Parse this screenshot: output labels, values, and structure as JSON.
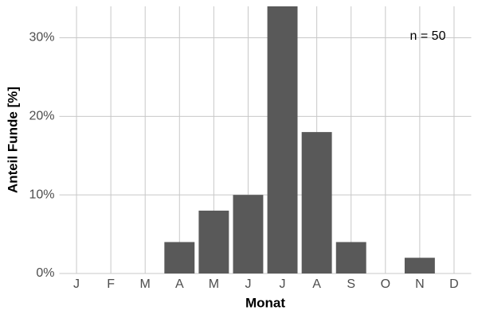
{
  "chart_data": {
    "type": "bar",
    "x_label": "Monat",
    "y_label": "Anteil Funde [%]",
    "annotation": "n = 50",
    "categories": [
      "J",
      "F",
      "M",
      "A",
      "M",
      "J",
      "J",
      "A",
      "S",
      "O",
      "N",
      "D"
    ],
    "values": [
      0,
      0,
      0,
      4,
      8,
      10,
      34,
      18,
      4,
      0,
      2,
      0
    ],
    "color": "#595959",
    "ylim": [
      0,
      34
    ],
    "yticks": [
      {
        "value": 0,
        "label": "0%"
      },
      {
        "value": 10,
        "label": "10%"
      },
      {
        "value": 20,
        "label": "20%"
      },
      {
        "value": 30,
        "label": "30%"
      }
    ],
    "grid": true
  }
}
